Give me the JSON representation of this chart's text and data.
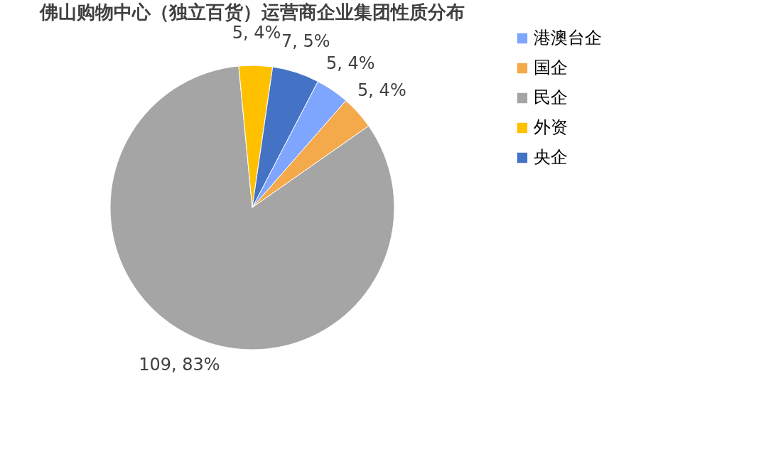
{
  "chart_data": {
    "type": "pie",
    "title": "佛山购物中心（独立百货）运营商企业集团性质分布",
    "categories": [
      "港澳台企",
      "国企",
      "民企",
      "外资",
      "央企"
    ],
    "values": [
      5,
      5,
      109,
      5,
      7
    ],
    "colors": [
      "#7fa6ff",
      "#f4a94a",
      "#a5a5a5",
      "#ffc000",
      "#4472c4"
    ],
    "value_labels": [
      "5, 4%",
      "5, 4%",
      "109, 83%",
      "5, 4%",
      "7, 5%"
    ],
    "legend": "right"
  }
}
